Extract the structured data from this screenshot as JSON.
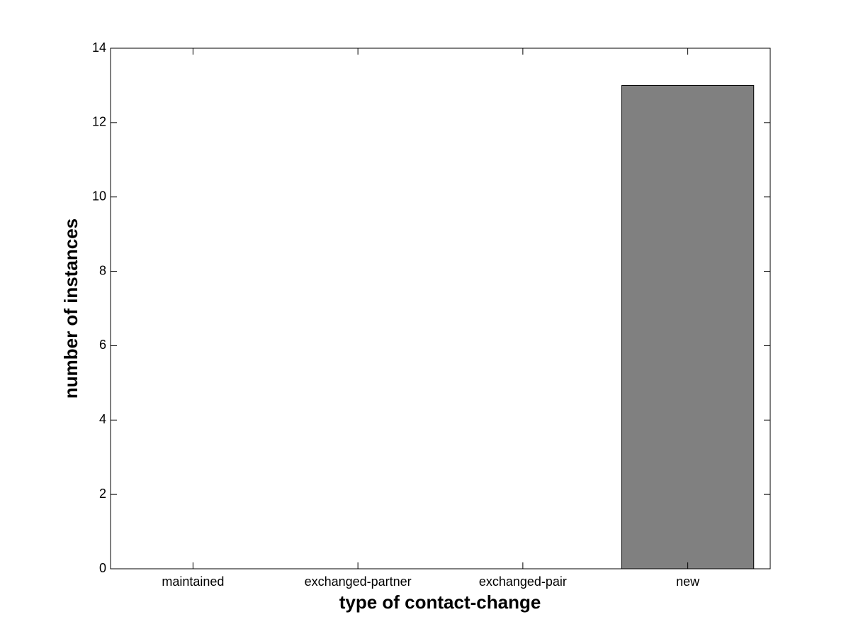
{
  "chart_data": {
    "type": "bar",
    "xlabel": "type of contact-change",
    "ylabel": "number of instances",
    "categories": [
      "maintained",
      "exchanged-partner",
      "exchanged-pair",
      "new"
    ],
    "values": [
      0,
      0,
      0,
      13
    ],
    "color": "#808080",
    "ylim": [
      0,
      14
    ],
    "yticks": [
      0,
      2,
      4,
      6,
      8,
      10,
      12,
      14
    ],
    "grid": false
  }
}
